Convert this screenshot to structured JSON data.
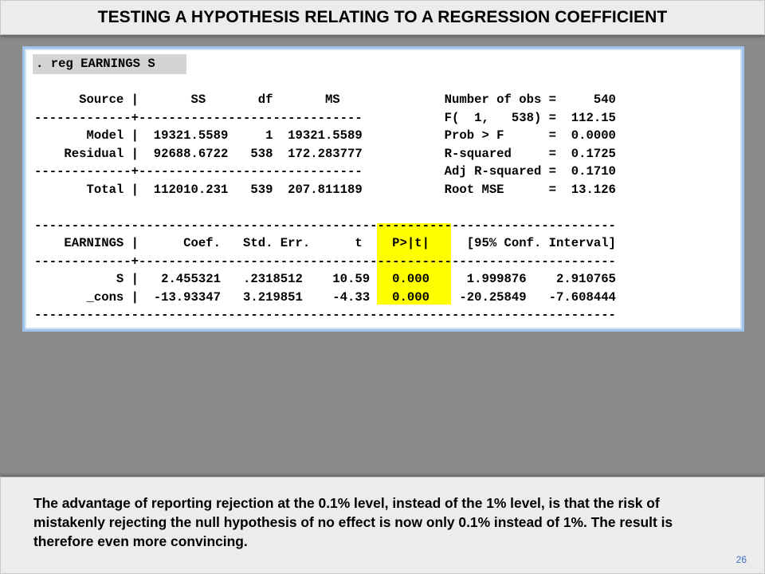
{
  "slide": {
    "title": "TESTING A HYPOTHESIS RELATING TO A REGRESSION COEFFICIENT",
    "page_number": "26"
  },
  "stata_output": {
    "command": ". reg EARNINGS S",
    "lines": [
      "      Source |       SS       df       MS              Number of obs =     540",
      "-------------+------------------------------           F(  1,   538) =  112.15",
      "       Model |  19321.5589     1  19321.5589           Prob > F      =  0.0000",
      "    Residual |  92688.6722   538  172.283777           R-squared     =  0.1725",
      "-------------+------------------------------           Adj R-squared =  0.1710",
      "       Total |  112010.231   539  207.811189           Root MSE      =  13.126",
      "",
      "------------------------------------------------------------------------------",
      "    EARNINGS |      Coef.   Std. Err.      t    P>|t|     [95% Conf. Interval]",
      "-------------+----------------------------------------------------------------",
      "           S |   2.455321   .2318512    10.59   0.000     1.999876    2.910765",
      "       _cons |  -13.93347   3.219851    -4.33   0.000    -20.25849   -7.608444",
      "------------------------------------------------------------------------------"
    ],
    "highlight_color": "#ffff00"
  },
  "explanation": {
    "text": "The advantage of reporting rejection at the 0.1% level, instead of the 1% level, is that the risk of mistakenly rejecting the null hypothesis of no effect is now only 0.1% instead of 1%. The result is therefore even more convincing."
  }
}
